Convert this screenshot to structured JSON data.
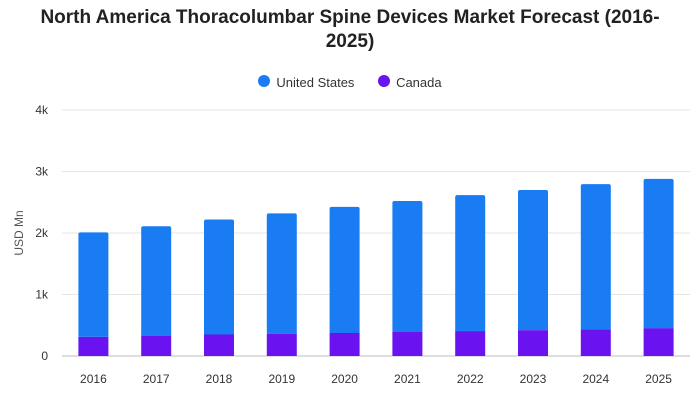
{
  "chart_data": {
    "type": "bar",
    "stacked": true,
    "title": "North America Thoracolumbar Spine Devices Market Forecast (2016-2025)",
    "xlabel": "",
    "ylabel": "USD Mn",
    "ylim": [
      0,
      4000
    ],
    "yticks": [
      0,
      1000,
      2000,
      3000,
      4000
    ],
    "ytick_labels": [
      "0",
      "1k",
      "2k",
      "3k",
      "4k"
    ],
    "grid": true,
    "legend_position": "top-center",
    "categories": [
      "2016",
      "2017",
      "2018",
      "2019",
      "2020",
      "2021",
      "2022",
      "2023",
      "2024",
      "2025"
    ],
    "series": [
      {
        "name": "United States",
        "color": "#1a7cf2",
        "values": [
          1700,
          1780,
          1870,
          1960,
          2050,
          2130,
          2210,
          2280,
          2360,
          2430
        ]
      },
      {
        "name": "Canada",
        "color": "#6a12f0",
        "values": [
          310,
          330,
          350,
          360,
          375,
          390,
          405,
          420,
          435,
          450
        ]
      }
    ]
  }
}
